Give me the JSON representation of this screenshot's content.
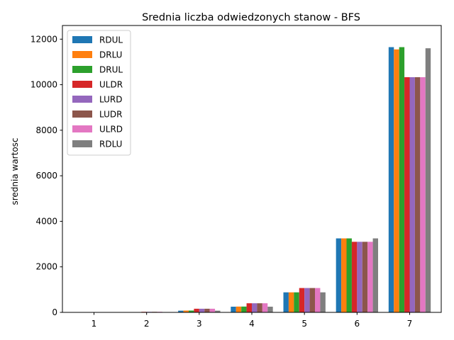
{
  "chart_data": {
    "type": "bar",
    "title": "Srednia liczba odwiedzonych stanow - BFS",
    "xlabel": "",
    "ylabel": "srednia wartosc",
    "categories": [
      "1",
      "2",
      "3",
      "4",
      "5",
      "6",
      "7"
    ],
    "ylim": [
      0,
      12600
    ],
    "yticks": [
      0,
      2000,
      4000,
      6000,
      8000,
      10000,
      12000
    ],
    "ytick_labels": [
      "0",
      "2000",
      "4000",
      "6000",
      "8000",
      "10000",
      "12000"
    ],
    "grid": false,
    "legend_position": "top-left",
    "series": [
      {
        "name": "RDUL",
        "color": "#1f77b4",
        "values": [
          3,
          10,
          75,
          250,
          880,
          3250,
          11650
        ]
      },
      {
        "name": "DRLU",
        "color": "#ff7f0e",
        "values": [
          3,
          12,
          80,
          255,
          880,
          3250,
          11550
        ]
      },
      {
        "name": "DRUL",
        "color": "#2ca02c",
        "values": [
          3,
          12,
          80,
          255,
          880,
          3250,
          11650
        ]
      },
      {
        "name": "ULDR",
        "color": "#d62728",
        "values": [
          4,
          25,
          160,
          400,
          1070,
          3100,
          10330
        ]
      },
      {
        "name": "LURD",
        "color": "#9467bd",
        "values": [
          4,
          25,
          160,
          400,
          1070,
          3100,
          10330
        ]
      },
      {
        "name": "LUDR",
        "color": "#8c564b",
        "values": [
          4,
          25,
          160,
          400,
          1070,
          3100,
          10330
        ]
      },
      {
        "name": "ULRD",
        "color": "#e377c2",
        "values": [
          4,
          25,
          160,
          400,
          1070,
          3100,
          10330
        ]
      },
      {
        "name": "RDLU",
        "color": "#7f7f7f",
        "values": [
          3,
          10,
          75,
          250,
          880,
          3250,
          11600
        ]
      }
    ]
  }
}
